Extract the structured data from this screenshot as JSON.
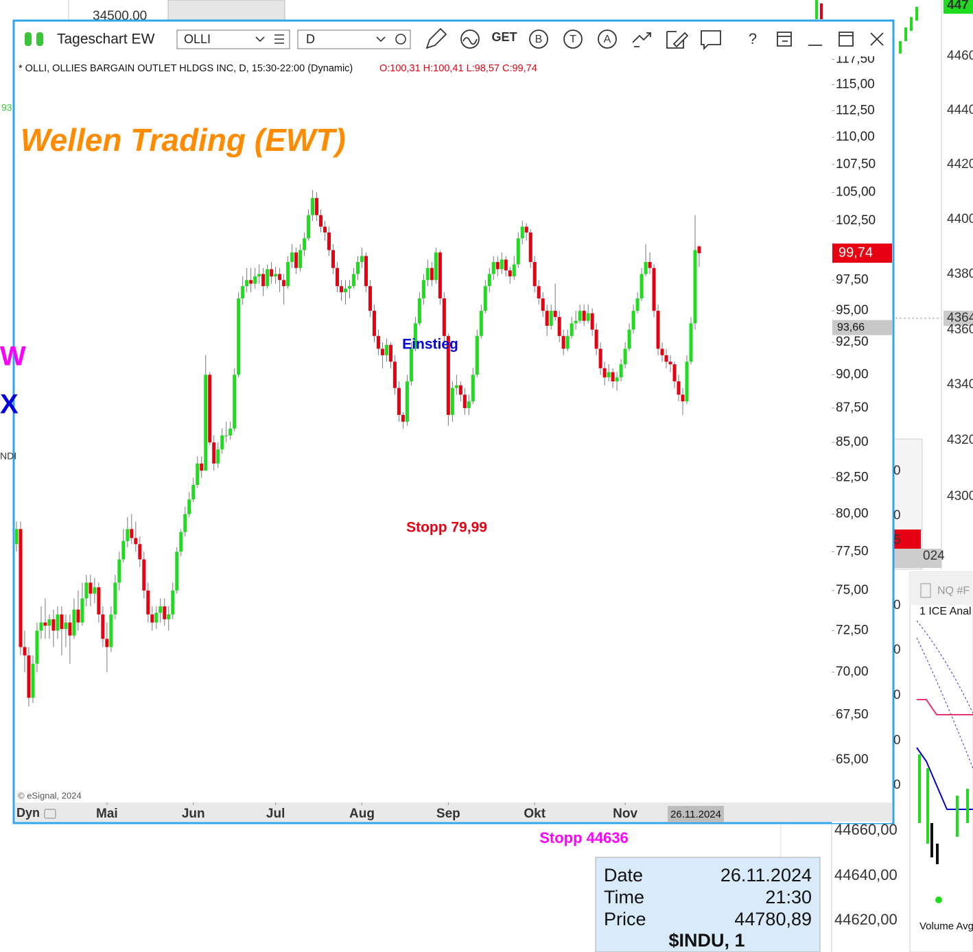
{
  "background": {
    "top_left_price": "34500,00",
    "left_labels": [
      "93",
      "W",
      "X",
      "NDI"
    ],
    "right_axis": [
      "447",
      "4460",
      "4440",
      "4420",
      "4400",
      "4380",
      "4364",
      "4360",
      "4340",
      "4320",
      "4300"
    ],
    "mid_panel": [
      "0",
      "0",
      "5",
      "024",
      "0",
      "0",
      "0",
      "0",
      "0"
    ],
    "nq_window": {
      "title": "NQ #F",
      "subtitle": "1 ICE Anal",
      "footer": "Volume Avg"
    },
    "bottom_axis": [
      "44660,00",
      "44640,00",
      "44620,00"
    ],
    "stop_label": "Stopp 44636",
    "info_box": {
      "rows": [
        [
          "Date",
          "26.11.2024"
        ],
        [
          "Time",
          "21:30"
        ],
        [
          "Price",
          "44780,89"
        ]
      ],
      "symbol": "$INDU, 1"
    }
  },
  "window": {
    "title": "Tageschart EW",
    "symbol": "OLLI",
    "interval": "D",
    "toolbar": [
      "GET",
      "B",
      "T",
      "A",
      "?"
    ],
    "header": "* OLLI, OLLIES BARGAIN OUTLET HLDGS INC, D, 15:30-22:00 (Dynamic)",
    "ohlc_text": "O:100,31 H:100,41 L:98,57 C:99,74",
    "watermark": "Wellen Trading (EWT)",
    "annotations": [
      "Einstieg",
      "Stopp 79,99"
    ],
    "copyright": "© eSignal, 2024",
    "dyn": "Dyn",
    "chart": {
      "type": "candlestick",
      "log_scale": true,
      "ylim": [
        62.7,
        117.8
      ],
      "yticks": [
        {
          "value": 117.5,
          "label": "117,50"
        },
        {
          "value": 115,
          "label": "115,00"
        },
        {
          "value": 112.5,
          "label": "112,50"
        },
        {
          "value": 110,
          "label": "110,00"
        },
        {
          "value": 107.5,
          "label": "107,50"
        },
        {
          "value": 105,
          "label": "105,00"
        },
        {
          "value": 102.5,
          "label": "102,50"
        },
        {
          "value": 97.5,
          "label": "97,50"
        },
        {
          "value": 95,
          "label": "95,00"
        },
        {
          "value": 92.5,
          "label": "92,50"
        },
        {
          "value": 90,
          "label": "90,00"
        },
        {
          "value": 87.5,
          "label": "87,50"
        },
        {
          "value": 85,
          "label": "85,00"
        },
        {
          "value": 82.5,
          "label": "82,50"
        },
        {
          "value": 80,
          "label": "80,00"
        },
        {
          "value": 77.5,
          "label": "77,50"
        },
        {
          "value": 75,
          "label": "75,00"
        },
        {
          "value": 72.5,
          "label": "72,50"
        },
        {
          "value": 70,
          "label": "70,00"
        },
        {
          "value": 67.5,
          "label": "67,50"
        },
        {
          "value": 65,
          "label": "65,00"
        }
      ],
      "xlim": [
        0,
        165
      ],
      "xticks": [
        {
          "value": 22,
          "label": "Mai"
        },
        {
          "value": 43,
          "label": "Jun"
        },
        {
          "value": 63,
          "label": "Jul"
        },
        {
          "value": 84,
          "label": "Aug"
        },
        {
          "value": 105,
          "label": "Sep"
        },
        {
          "value": 126,
          "label": "Okt"
        },
        {
          "value": 148,
          "label": "Nov"
        }
      ],
      "date_marker": {
        "value": 165,
        "label": "26.11.2024"
      },
      "last_price": {
        "value": 99.74,
        "label": "99,74"
      },
      "marker_price": {
        "value": 93.66,
        "label": "93,66"
      },
      "colors": {
        "up": "#1fdc1f",
        "down": "#e60012"
      },
      "candles": [
        [
          78,
          79.5,
          77.5,
          79
        ],
        [
          79,
          79.5,
          71,
          71.5
        ],
        [
          71.5,
          72.5,
          70,
          71
        ],
        [
          71,
          71.5,
          68,
          68.5
        ],
        [
          68.5,
          71,
          68.2,
          70.5
        ],
        [
          70.5,
          73,
          70,
          72.5
        ],
        [
          72.5,
          74,
          72,
          73
        ],
        [
          73,
          74.5,
          72,
          72.8
        ],
        [
          72.8,
          73.5,
          72,
          73.2
        ],
        [
          73.2,
          73.8,
          71.5,
          72.5
        ],
        [
          72.5,
          74,
          72,
          73.5
        ],
        [
          73.5,
          74,
          71,
          72.6
        ],
        [
          72.6,
          73.5,
          71.5,
          73
        ],
        [
          73,
          73.5,
          70.5,
          72.2
        ],
        [
          72.2,
          74.5,
          72,
          73.8
        ],
        [
          73.8,
          75,
          72.5,
          73
        ],
        [
          73,
          75.5,
          72.8,
          74.5
        ],
        [
          74.5,
          76,
          74,
          75.5
        ],
        [
          75.5,
          76,
          74,
          74.8
        ],
        [
          74.8,
          75.8,
          74.2,
          75.2
        ],
        [
          75.2,
          75.5,
          73,
          73.5
        ],
        [
          73.5,
          74,
          71.5,
          72
        ],
        [
          72,
          73,
          70,
          71.5
        ],
        [
          71.5,
          74,
          71.2,
          73.5
        ],
        [
          73.5,
          76,
          73.2,
          75.5
        ],
        [
          75.5,
          77.5,
          75,
          77
        ],
        [
          77,
          79,
          76.8,
          78.2
        ],
        [
          78.2,
          79.8,
          77.8,
          79
        ],
        [
          79,
          80,
          78,
          78.4
        ],
        [
          78.4,
          79.5,
          77.5,
          78
        ],
        [
          78,
          78.5,
          76.5,
          77
        ],
        [
          77,
          77.5,
          74.5,
          75
        ],
        [
          75,
          75.5,
          73,
          73.5
        ],
        [
          73.5,
          74,
          72.5,
          73
        ],
        [
          73,
          74,
          72.6,
          73.6
        ],
        [
          73.6,
          74.5,
          73,
          74
        ],
        [
          74,
          74.5,
          72.8,
          73.2
        ],
        [
          73.2,
          74,
          72.5,
          73.5
        ],
        [
          73.5,
          75.5,
          73.2,
          75
        ],
        [
          75,
          77.8,
          74.8,
          77.5
        ],
        [
          77.5,
          79,
          77.2,
          78.8
        ],
        [
          78.8,
          80.5,
          78.5,
          80
        ],
        [
          80,
          81.5,
          79.8,
          81
        ],
        [
          81,
          82.5,
          80.8,
          82
        ],
        [
          82,
          84,
          81.8,
          83.5
        ],
        [
          83.5,
          84,
          82.5,
          83
        ],
        [
          83,
          91.5,
          83,
          90
        ],
        [
          90,
          90.2,
          84.8,
          85
        ],
        [
          85,
          85.5,
          83,
          83.5
        ],
        [
          83.5,
          85,
          83.2,
          84.5
        ],
        [
          84.5,
          86,
          84.2,
          85.5
        ],
        [
          85.5,
          86.5,
          85,
          85.5
        ],
        [
          85.5,
          86.5,
          85.2,
          86
        ],
        [
          86,
          90.5,
          85.8,
          90
        ],
        [
          90,
          96.5,
          89.8,
          96
        ],
        [
          96,
          97.8,
          95.5,
          97
        ],
        [
          97,
          98.5,
          96.5,
          97.5
        ],
        [
          97.5,
          98.5,
          96.5,
          97.2
        ],
        [
          97.2,
          98.5,
          96.8,
          97.8
        ],
        [
          97.8,
          98.8,
          97.2,
          98
        ],
        [
          98,
          98.5,
          96.2,
          97
        ],
        [
          97,
          98.8,
          96.8,
          98.4
        ],
        [
          98.4,
          99,
          97.2,
          97.8
        ],
        [
          97.8,
          98.6,
          97.2,
          98
        ],
        [
          98,
          98.5,
          96.5,
          97.5
        ],
        [
          97.5,
          98,
          95.5,
          97
        ],
        [
          97,
          99.5,
          96.8,
          99
        ],
        [
          99,
          100.5,
          98.5,
          99.8
        ],
        [
          99.8,
          100.2,
          98,
          98.5
        ],
        [
          98.5,
          100.5,
          98.2,
          100
        ],
        [
          100,
          101.5,
          99.5,
          101
        ],
        [
          101,
          103.5,
          100.8,
          103
        ],
        [
          103,
          105.2,
          102.5,
          104.5
        ],
        [
          104.5,
          105,
          102.5,
          103
        ],
        [
          103,
          103.5,
          101.5,
          102
        ],
        [
          102,
          102.5,
          100.8,
          101.5
        ],
        [
          101.5,
          102,
          99.5,
          100
        ],
        [
          100,
          100.5,
          98,
          98.5
        ],
        [
          98.5,
          99,
          96.5,
          97
        ],
        [
          97,
          97.5,
          95.8,
          96.5
        ],
        [
          96.5,
          97.5,
          95.5,
          96.8
        ],
        [
          96.8,
          97.5,
          96,
          97
        ],
        [
          97,
          98.5,
          96.8,
          98
        ],
        [
          98,
          99.5,
          97.5,
          99
        ],
        [
          99,
          100.2,
          98.5,
          99.5
        ],
        [
          99.5,
          99.8,
          96.5,
          97
        ],
        [
          97,
          97.5,
          94.5,
          95
        ],
        [
          95,
          95.5,
          92.5,
          93
        ],
        [
          93,
          93.5,
          91.5,
          92
        ],
        [
          92,
          92.5,
          90.5,
          91.5
        ],
        [
          91.5,
          92.8,
          91,
          92.3
        ],
        [
          92.3,
          92.5,
          90.5,
          91
        ],
        [
          91,
          91.5,
          88.5,
          89
        ],
        [
          89,
          89.5,
          86.5,
          87
        ],
        [
          87,
          87.2,
          86,
          86.5
        ],
        [
          86.5,
          90,
          86.2,
          89.5
        ],
        [
          89.5,
          92.5,
          89.2,
          92
        ],
        [
          92,
          94.5,
          91.8,
          94
        ],
        [
          94,
          96.5,
          93.8,
          96
        ],
        [
          96,
          98,
          95.5,
          97.5
        ],
        [
          97.5,
          99.2,
          97,
          98.5
        ],
        [
          98.5,
          99,
          97,
          97.5
        ],
        [
          97.5,
          100.2,
          97.2,
          99.8
        ],
        [
          99.8,
          100,
          95.5,
          96
        ],
        [
          96,
          96.5,
          92.5,
          93
        ],
        [
          93,
          93.2,
          86.2,
          87
        ],
        [
          87,
          89.5,
          86.5,
          89
        ],
        [
          89,
          90,
          88.5,
          89.2
        ],
        [
          89.2,
          89.5,
          88,
          88.5
        ],
        [
          88.5,
          89,
          87,
          87.5
        ],
        [
          87.5,
          88.5,
          87,
          88
        ],
        [
          88,
          90.5,
          87.8,
          90
        ],
        [
          90,
          93.5,
          89.8,
          93
        ],
        [
          93,
          95.5,
          92.8,
          95
        ],
        [
          95,
          97.5,
          94.8,
          97
        ],
        [
          97,
          98.5,
          96.5,
          98
        ],
        [
          98,
          99.5,
          97.5,
          99
        ],
        [
          99,
          99.5,
          97.8,
          98.4
        ],
        [
          98.4,
          99.8,
          98,
          99.2
        ],
        [
          99.2,
          99.5,
          97.8,
          98.3
        ],
        [
          98.3,
          98.6,
          97.2,
          97.8
        ],
        [
          97.8,
          99.5,
          97.5,
          98.8
        ],
        [
          98.8,
          101.5,
          98.5,
          101
        ],
        [
          101,
          102.5,
          100.5,
          102
        ],
        [
          102,
          102.3,
          100.8,
          101.5
        ],
        [
          101.5,
          101.8,
          98.5,
          99
        ],
        [
          99,
          99.5,
          96.5,
          97
        ],
        [
          97,
          97.5,
          95.5,
          96
        ],
        [
          96,
          96.5,
          94.5,
          95
        ],
        [
          95,
          95.5,
          93,
          93.8
        ],
        [
          93.8,
          95.5,
          93.5,
          95
        ],
        [
          95,
          97.2,
          94.2,
          94.5
        ],
        [
          94.5,
          95,
          92.5,
          93
        ],
        [
          93,
          93.5,
          91.5,
          92
        ],
        [
          92,
          93.5,
          91.8,
          93
        ],
        [
          93,
          94.5,
          92.8,
          94
        ],
        [
          94,
          95,
          93.5,
          94.2
        ],
        [
          94.2,
          95.5,
          94,
          95
        ],
        [
          95,
          95.5,
          93.8,
          94.2
        ],
        [
          94.2,
          95.5,
          94,
          94.8
        ],
        [
          94.8,
          95.2,
          93,
          93.5
        ],
        [
          93.5,
          94,
          91.5,
          92
        ],
        [
          92,
          92.5,
          90,
          90.5
        ],
        [
          90.5,
          91,
          89.2,
          89.8
        ],
        [
          89.8,
          90.8,
          89.5,
          90.2
        ],
        [
          90.2,
          90.5,
          89,
          89.5
        ],
        [
          89.5,
          90.2,
          88.8,
          89.8
        ],
        [
          89.8,
          91.2,
          89.5,
          90.8
        ],
        [
          90.8,
          92.5,
          90.5,
          92
        ],
        [
          92,
          94,
          91.8,
          93.5
        ],
        [
          93.5,
          95.5,
          93.2,
          95
        ],
        [
          95,
          96.5,
          94.8,
          96
        ],
        [
          96,
          98.5,
          95.8,
          98
        ],
        [
          98,
          100.5,
          97.8,
          99
        ],
        [
          99,
          99.8,
          98,
          98.5
        ],
        [
          98.5,
          98.8,
          94.5,
          95
        ],
        [
          95,
          95.5,
          91.5,
          92
        ],
        [
          92,
          92.5,
          91,
          91.5
        ],
        [
          91.5,
          92,
          90.5,
          91
        ],
        [
          91,
          91.5,
          90.2,
          90.8
        ],
        [
          90.8,
          91,
          89,
          89.5
        ],
        [
          89.5,
          90,
          88,
          88.5
        ],
        [
          88.5,
          89,
          87,
          88
        ],
        [
          88,
          91.5,
          87.8,
          91
        ],
        [
          91,
          94.5,
          90.8,
          94
        ],
        [
          94,
          103,
          93.5,
          100
        ],
        [
          100.31,
          100.41,
          98.57,
          99.74
        ]
      ]
    }
  }
}
